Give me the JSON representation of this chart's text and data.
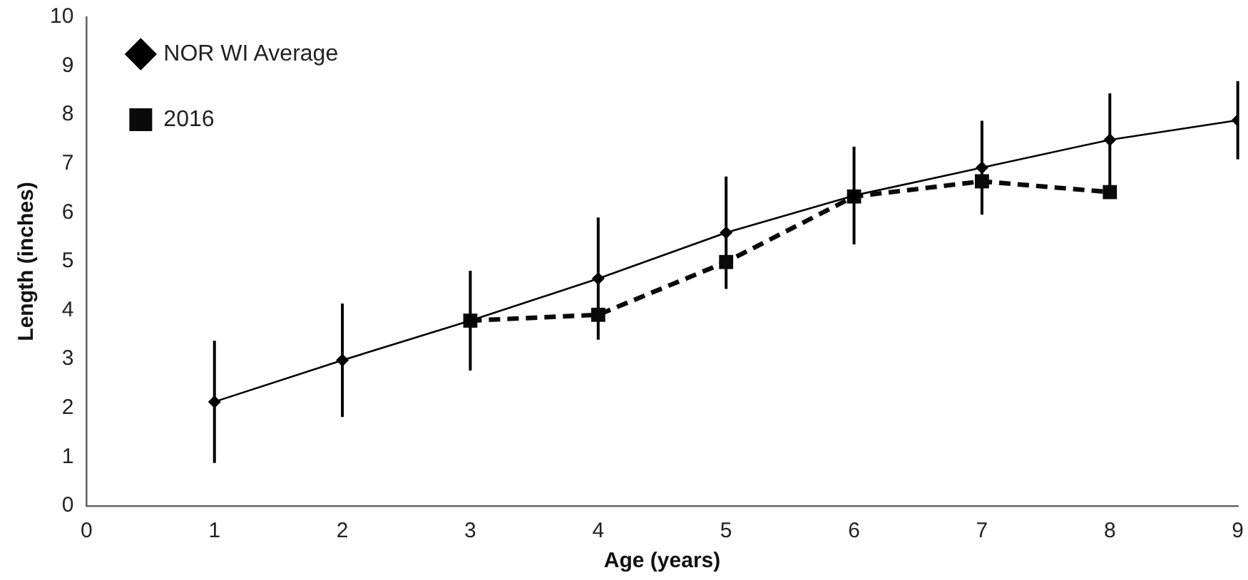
{
  "chart_data": {
    "type": "line",
    "xlabel": "Age (years)",
    "ylabel": "Length (inches)",
    "x": [
      1,
      2,
      3,
      4,
      5,
      6,
      7,
      8,
      9
    ],
    "series": [
      {
        "name": "NOR WI Average",
        "color": "#000000",
        "marker": "diamond",
        "line_style": "solid",
        "values": [
          2.13,
          2.98,
          3.79,
          4.65,
          5.59,
          6.35,
          6.92,
          7.49,
          7.89
        ],
        "errors": [
          1.25,
          1.16,
          1.02,
          1.25,
          1.15,
          1.0,
          0.96,
          0.95,
          0.8
        ]
      },
      {
        "name": "2016",
        "color": "#0a0a0a",
        "marker": "square",
        "line_style": "dashed",
        "values": [
          null,
          null,
          3.79,
          3.91,
          4.99,
          6.33,
          6.64,
          6.42,
          null
        ]
      }
    ],
    "xlim": [
      0,
      9
    ],
    "xticks": [
      0,
      1,
      2,
      3,
      4,
      5,
      6,
      7,
      8,
      9
    ],
    "ylim": [
      0,
      10
    ],
    "yticks": [
      0,
      1,
      2,
      3,
      4,
      5,
      6,
      7,
      8,
      9,
      10
    ],
    "grid": false,
    "legend": "top left"
  }
}
